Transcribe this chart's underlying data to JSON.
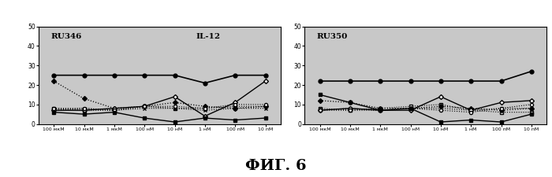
{
  "fig_label": "ФИГ. 6",
  "xlabel_ticks": [
    "100 мкМ",
    "10 мкМ",
    "1 мкМ",
    "100 нМ",
    "10 нМ",
    "1 нМ",
    "100 пМ",
    "10 пМ"
  ],
  "ylim": [
    0,
    50
  ],
  "yticks": [
    0,
    10,
    20,
    30,
    40,
    50
  ],
  "panel1_label": "RU346",
  "panel1_label2": "IL-12",
  "panel2_label": "RU350",
  "series": {
    "filled_circle_solid": {
      "p1": [
        25,
        25,
        25,
        25,
        25,
        21,
        25,
        25
      ],
      "p2": [
        22,
        22,
        22,
        22,
        22,
        22,
        22,
        27
      ]
    },
    "open_diamond_solid": {
      "p1": [
        7,
        7,
        8,
        9,
        14,
        4,
        11,
        22
      ],
      "p2": [
        7,
        8,
        7,
        7,
        14,
        7,
        11,
        12
      ]
    },
    "open_circle_dotted": {
      "p1": [
        8,
        8,
        7,
        9,
        9,
        8,
        10,
        10
      ],
      "p2": [
        7,
        7,
        7,
        8,
        7,
        6,
        8,
        10
      ]
    },
    "filled_square_solid": {
      "p1": [
        6,
        5,
        6,
        3,
        1,
        3,
        2,
        3
      ],
      "p2": [
        15,
        11,
        7,
        8,
        1,
        2,
        1,
        5
      ]
    },
    "open_square_dotted": {
      "p1": [
        8,
        7,
        7,
        9,
        8,
        8,
        9,
        9
      ],
      "p2": [
        8,
        7,
        8,
        9,
        10,
        7,
        6,
        6
      ]
    },
    "x_dotted": {
      "p1": [
        7,
        8,
        7,
        8,
        8,
        7,
        8,
        8
      ],
      "p2": [
        7,
        8,
        7,
        8,
        8,
        7,
        8,
        8
      ]
    },
    "filled_diamond_dotted": {
      "p1": [
        22,
        13,
        8,
        9,
        11,
        9,
        8,
        9
      ],
      "p2": [
        12,
        11,
        8,
        8,
        9,
        8,
        7,
        8
      ]
    }
  },
  "figure_bg": "#ffffff",
  "plot_bg": "#c8c8c8",
  "border_color": "#555555"
}
